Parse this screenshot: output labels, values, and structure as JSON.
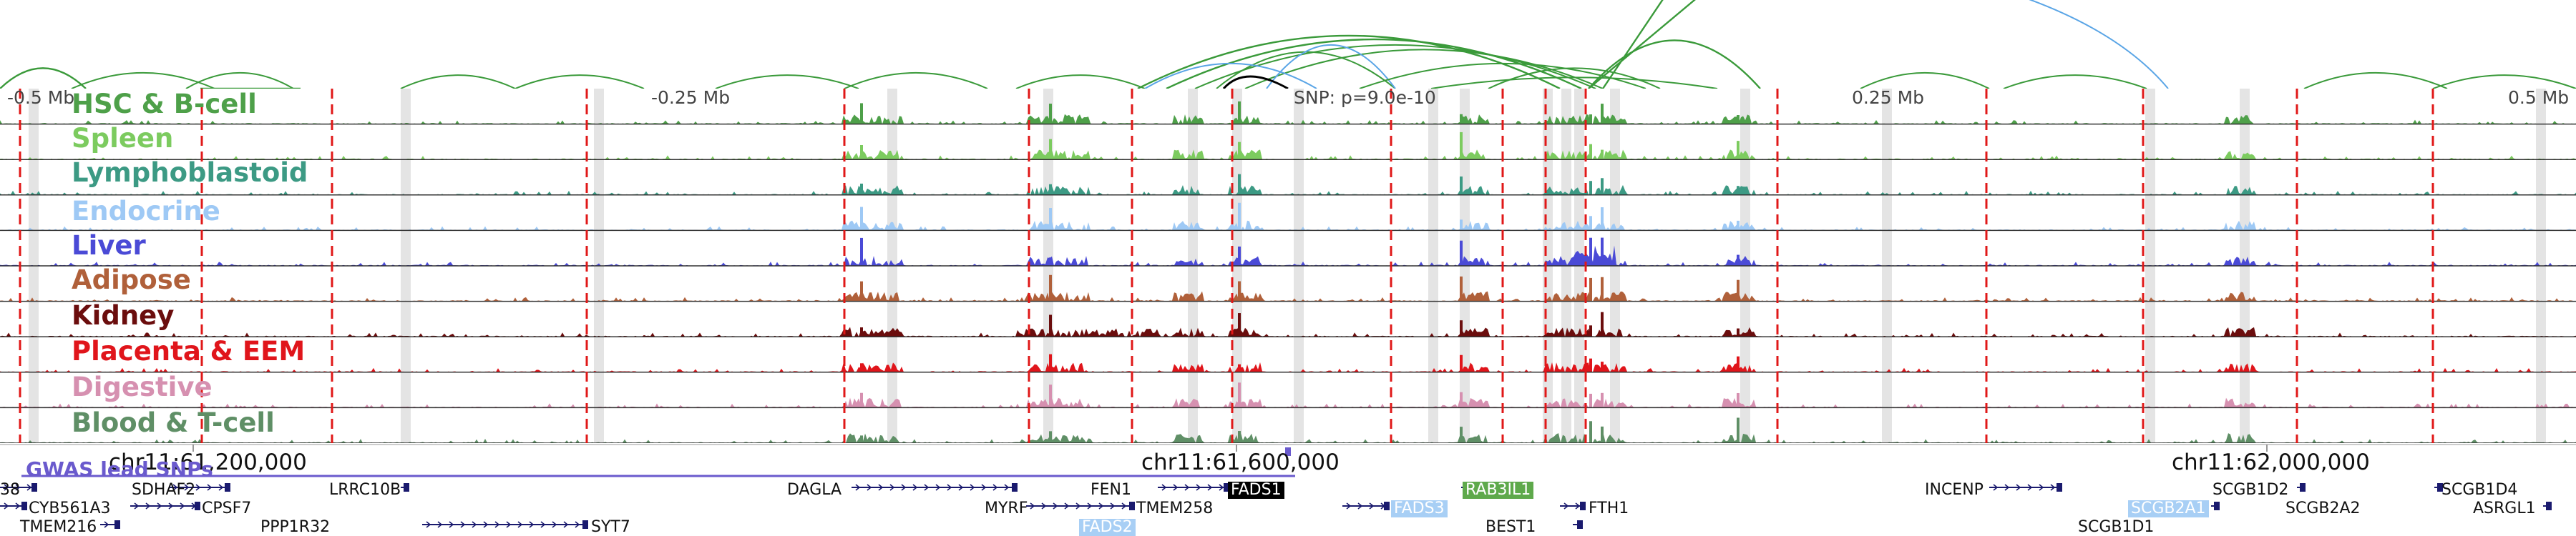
{
  "view": {
    "distance_markers": [
      "-0.5 Mb",
      "-0.25 Mb",
      "0.25 Mb",
      "0.5 Mb"
    ],
    "lead_snp_label": "SNP: p=9.0e-10",
    "coordinates": [
      "chr11:61,200,000",
      "chr11:61,600,000",
      "chr11:62,000,000"
    ],
    "gwas_label": "GWAS lead SNPs"
  },
  "tracks": [
    {
      "label": "HSC & B-cell",
      "color": "#4ea049"
    },
    {
      "label": "Spleen",
      "color": "#7ccb5f"
    },
    {
      "label": "Lymphoblastoid",
      "color": "#3c9a84"
    },
    {
      "label": "Endocrine",
      "color": "#9ec9f5"
    },
    {
      "label": "Liver",
      "color": "#4a4ad6"
    },
    {
      "label": "Adipose",
      "color": "#b0603a"
    },
    {
      "label": "Kidney",
      "color": "#6b0d0d"
    },
    {
      "label": "Placenta & EEM",
      "color": "#e0151b"
    },
    {
      "label": "Digestive",
      "color": "#d690b0"
    },
    {
      "label": "Blood & T-cell",
      "color": "#5f8f66"
    }
  ],
  "genes": [
    {
      "name": "38"
    },
    {
      "name": "SDHAF2"
    },
    {
      "name": "LRRC10B"
    },
    {
      "name": "CYB561A3"
    },
    {
      "name": "CPSF7"
    },
    {
      "name": "TMEM216"
    },
    {
      "name": "PPP1R32"
    },
    {
      "name": "SYT7"
    },
    {
      "name": "DAGLA"
    },
    {
      "name": "FEN1"
    },
    {
      "name": "FADS1"
    },
    {
      "name": "MYRF"
    },
    {
      "name": "TMEM258"
    },
    {
      "name": "FADS2"
    },
    {
      "name": "RAB3IL1"
    },
    {
      "name": "FADS3"
    },
    {
      "name": "FTH1"
    },
    {
      "name": "BEST1"
    },
    {
      "name": "INCENP"
    },
    {
      "name": "SCGB1D2"
    },
    {
      "name": "SCGB1D4"
    },
    {
      "name": "SCGB2A1"
    },
    {
      "name": "SCGB2A2"
    },
    {
      "name": "SCGB1D1"
    },
    {
      "name": "ASRGL1"
    }
  ],
  "colors": {
    "arc_green": "#3a9a3a",
    "arc_blue": "#5aa5e6",
    "arc_black": "#000000",
    "gwas_snp": "#6a5acd",
    "red_dashes": "#e01818",
    "gene_body": "#1a1a6e",
    "fads1_bg": "#000000",
    "rab3il1_bg": "#5ea94b",
    "endocrine_bg": "#a8cff5"
  }
}
